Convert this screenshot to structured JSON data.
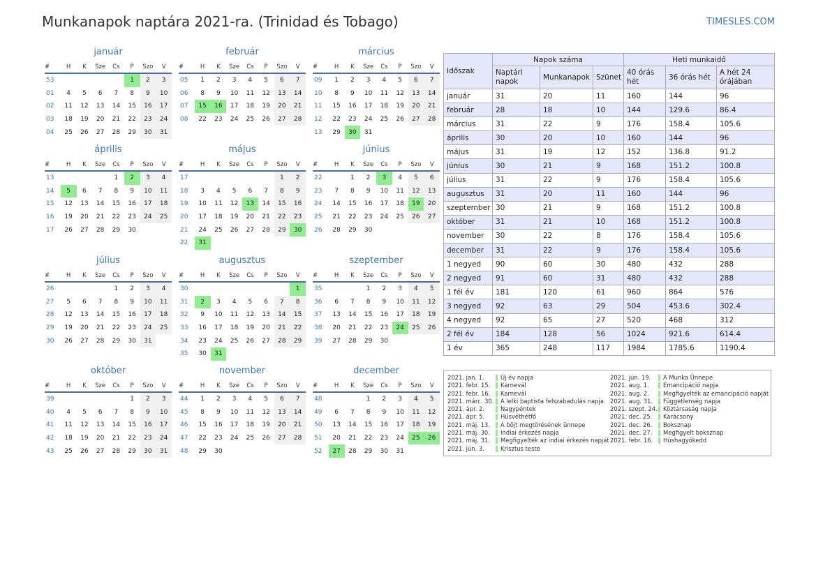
{
  "title": "Munkanapok naptára 2021-ra. (Trinidad és Tobago)",
  "site": "TIMESLES.COM",
  "colors": {
    "accent": "#3b78b8",
    "holiday": "#90ee90",
    "weekend": "#f0f0f0",
    "header_rule": "#4a6ba8",
    "table_alt": "#e4e8fa"
  },
  "weekday_headers": [
    "#",
    "H",
    "K",
    "Sze",
    "Cs",
    "P",
    "Szo",
    "V"
  ],
  "months": [
    {
      "name": "január",
      "rows": [
        {
          "wk": "53",
          "days": [
            "",
            "",
            "",
            "",
            "1",
            "2",
            "3"
          ]
        },
        {
          "wk": "01",
          "days": [
            "4",
            "5",
            "6",
            "7",
            "8",
            "9",
            "10"
          ]
        },
        {
          "wk": "02",
          "days": [
            "11",
            "12",
            "13",
            "14",
            "15",
            "16",
            "17"
          ]
        },
        {
          "wk": "03",
          "days": [
            "18",
            "19",
            "20",
            "21",
            "22",
            "23",
            "24"
          ]
        },
        {
          "wk": "04",
          "days": [
            "25",
            "26",
            "27",
            "28",
            "29",
            "30",
            "31"
          ]
        }
      ],
      "holidays": [
        "1"
      ]
    },
    {
      "name": "február",
      "rows": [
        {
          "wk": "05",
          "days": [
            "1",
            "2",
            "3",
            "4",
            "5",
            "6",
            "7"
          ]
        },
        {
          "wk": "06",
          "days": [
            "8",
            "9",
            "10",
            "11",
            "12",
            "13",
            "14"
          ]
        },
        {
          "wk": "07",
          "days": [
            "15",
            "16",
            "17",
            "18",
            "19",
            "20",
            "21"
          ]
        },
        {
          "wk": "08",
          "days": [
            "22",
            "23",
            "24",
            "25",
            "26",
            "27",
            "28"
          ]
        }
      ],
      "holidays": [
        "15",
        "16"
      ]
    },
    {
      "name": "március",
      "rows": [
        {
          "wk": "09",
          "days": [
            "1",
            "2",
            "3",
            "4",
            "5",
            "6",
            "7"
          ]
        },
        {
          "wk": "10",
          "days": [
            "8",
            "9",
            "10",
            "11",
            "12",
            "13",
            "14"
          ]
        },
        {
          "wk": "11",
          "days": [
            "15",
            "16",
            "17",
            "18",
            "19",
            "20",
            "21"
          ]
        },
        {
          "wk": "12",
          "days": [
            "22",
            "23",
            "24",
            "25",
            "26",
            "27",
            "28"
          ]
        },
        {
          "wk": "13",
          "days": [
            "29",
            "30",
            "31",
            "",
            "",
            "",
            ""
          ]
        }
      ],
      "holidays": [
        "30"
      ]
    },
    {
      "name": "április",
      "rows": [
        {
          "wk": "13",
          "days": [
            "",
            "",
            "",
            "1",
            "2",
            "3",
            "4"
          ]
        },
        {
          "wk": "14",
          "days": [
            "5",
            "6",
            "7",
            "8",
            "9",
            "10",
            "11"
          ]
        },
        {
          "wk": "15",
          "days": [
            "12",
            "13",
            "14",
            "15",
            "16",
            "17",
            "18"
          ]
        },
        {
          "wk": "16",
          "days": [
            "19",
            "20",
            "21",
            "22",
            "23",
            "24",
            "25"
          ]
        },
        {
          "wk": "17",
          "days": [
            "26",
            "27",
            "28",
            "29",
            "30",
            "",
            ""
          ]
        }
      ],
      "holidays": [
        "2",
        "5"
      ]
    },
    {
      "name": "május",
      "rows": [
        {
          "wk": "17",
          "days": [
            "",
            "",
            "",
            "",
            "",
            "1",
            "2"
          ]
        },
        {
          "wk": "18",
          "days": [
            "3",
            "4",
            "5",
            "6",
            "7",
            "8",
            "9"
          ]
        },
        {
          "wk": "19",
          "days": [
            "10",
            "11",
            "12",
            "13",
            "14",
            "15",
            "16"
          ]
        },
        {
          "wk": "20",
          "days": [
            "17",
            "18",
            "19",
            "20",
            "21",
            "22",
            "23"
          ]
        },
        {
          "wk": "21",
          "days": [
            "24",
            "25",
            "26",
            "27",
            "28",
            "29",
            "30"
          ]
        },
        {
          "wk": "22",
          "days": [
            "31",
            "",
            "",
            "",
            "",
            "",
            ""
          ]
        }
      ],
      "holidays": [
        "13",
        "30",
        "31"
      ]
    },
    {
      "name": "június",
      "rows": [
        {
          "wk": "22",
          "days": [
            "",
            "1",
            "2",
            "3",
            "4",
            "5",
            "6"
          ]
        },
        {
          "wk": "23",
          "days": [
            "7",
            "8",
            "9",
            "10",
            "11",
            "12",
            "13"
          ]
        },
        {
          "wk": "24",
          "days": [
            "14",
            "15",
            "16",
            "17",
            "18",
            "19",
            "20"
          ]
        },
        {
          "wk": "25",
          "days": [
            "21",
            "22",
            "23",
            "24",
            "25",
            "26",
            "27"
          ]
        },
        {
          "wk": "26",
          "days": [
            "28",
            "29",
            "30",
            "",
            "",
            "",
            ""
          ]
        }
      ],
      "holidays": [
        "3",
        "19"
      ]
    },
    {
      "name": "július",
      "rows": [
        {
          "wk": "26",
          "days": [
            "",
            "",
            "",
            "1",
            "2",
            "3",
            "4"
          ]
        },
        {
          "wk": "27",
          "days": [
            "5",
            "6",
            "7",
            "8",
            "9",
            "10",
            "11"
          ]
        },
        {
          "wk": "28",
          "days": [
            "12",
            "13",
            "14",
            "15",
            "16",
            "17",
            "18"
          ]
        },
        {
          "wk": "29",
          "days": [
            "19",
            "20",
            "21",
            "22",
            "23",
            "24",
            "25"
          ]
        },
        {
          "wk": "30",
          "days": [
            "26",
            "27",
            "28",
            "29",
            "30",
            "31",
            ""
          ]
        }
      ],
      "holidays": []
    },
    {
      "name": "augusztus",
      "rows": [
        {
          "wk": "30",
          "days": [
            "",
            "",
            "",
            "",
            "",
            "",
            "1"
          ]
        },
        {
          "wk": "31",
          "days": [
            "2",
            "3",
            "4",
            "5",
            "6",
            "7",
            "8"
          ]
        },
        {
          "wk": "32",
          "days": [
            "9",
            "10",
            "11",
            "12",
            "13",
            "14",
            "15"
          ]
        },
        {
          "wk": "33",
          "days": [
            "16",
            "17",
            "18",
            "19",
            "20",
            "21",
            "22"
          ]
        },
        {
          "wk": "34",
          "days": [
            "23",
            "24",
            "25",
            "26",
            "27",
            "28",
            "29"
          ]
        },
        {
          "wk": "35",
          "days": [
            "30",
            "31",
            "",
            "",
            "",
            "",
            ""
          ]
        }
      ],
      "holidays": [
        "1",
        "2",
        "31"
      ]
    },
    {
      "name": "szeptember",
      "rows": [
        {
          "wk": "35",
          "days": [
            "",
            "",
            "1",
            "2",
            "3",
            "4",
            "5"
          ]
        },
        {
          "wk": "36",
          "days": [
            "6",
            "7",
            "8",
            "9",
            "10",
            "11",
            "12"
          ]
        },
        {
          "wk": "37",
          "days": [
            "13",
            "14",
            "15",
            "16",
            "17",
            "18",
            "19"
          ]
        },
        {
          "wk": "38",
          "days": [
            "20",
            "21",
            "22",
            "23",
            "24",
            "25",
            "26"
          ]
        },
        {
          "wk": "39",
          "days": [
            "27",
            "28",
            "29",
            "30",
            "",
            "",
            ""
          ]
        }
      ],
      "holidays": [
        "24"
      ]
    },
    {
      "name": "október",
      "rows": [
        {
          "wk": "39",
          "days": [
            "",
            "",
            "",
            "",
            "1",
            "2",
            "3"
          ]
        },
        {
          "wk": "40",
          "days": [
            "4",
            "5",
            "6",
            "7",
            "8",
            "9",
            "10"
          ]
        },
        {
          "wk": "41",
          "days": [
            "11",
            "12",
            "13",
            "14",
            "15",
            "16",
            "17"
          ]
        },
        {
          "wk": "42",
          "days": [
            "18",
            "19",
            "20",
            "21",
            "22",
            "23",
            "24"
          ]
        },
        {
          "wk": "43",
          "days": [
            "25",
            "26",
            "27",
            "28",
            "29",
            "30",
            "31"
          ]
        }
      ],
      "holidays": []
    },
    {
      "name": "november",
      "rows": [
        {
          "wk": "44",
          "days": [
            "1",
            "2",
            "3",
            "4",
            "5",
            "6",
            "7"
          ]
        },
        {
          "wk": "45",
          "days": [
            "8",
            "9",
            "10",
            "11",
            "12",
            "13",
            "14"
          ]
        },
        {
          "wk": "46",
          "days": [
            "15",
            "16",
            "17",
            "18",
            "19",
            "20",
            "21"
          ]
        },
        {
          "wk": "47",
          "days": [
            "22",
            "23",
            "24",
            "25",
            "26",
            "27",
            "28"
          ]
        },
        {
          "wk": "48",
          "days": [
            "29",
            "30",
            "",
            "",
            "",
            "",
            ""
          ]
        }
      ],
      "holidays": []
    },
    {
      "name": "december",
      "rows": [
        {
          "wk": "48",
          "days": [
            "",
            "",
            "1",
            "2",
            "3",
            "4",
            "5"
          ]
        },
        {
          "wk": "49",
          "days": [
            "6",
            "7",
            "8",
            "9",
            "10",
            "11",
            "12"
          ]
        },
        {
          "wk": "50",
          "days": [
            "13",
            "14",
            "15",
            "16",
            "17",
            "18",
            "19"
          ]
        },
        {
          "wk": "51",
          "days": [
            "20",
            "21",
            "22",
            "23",
            "24",
            "25",
            "26"
          ]
        },
        {
          "wk": "52",
          "days": [
            "27",
            "28",
            "29",
            "30",
            "31",
            "",
            ""
          ]
        }
      ],
      "holidays": [
        "25",
        "26",
        "27"
      ]
    }
  ],
  "stats": {
    "h_period": "Időszak",
    "h_days_group": "Napok száma",
    "h_hours_group": "Heti munkaidő",
    "h_days_sub": [
      "Naptári napok",
      "Munkanapok",
      "Szünet"
    ],
    "h_hours_sub": [
      "40 órás hét",
      "36 órás hét",
      "A hét 24 órájában"
    ],
    "rows": [
      [
        "január",
        "31",
        "20",
        "11",
        "160",
        "144",
        "96"
      ],
      [
        "február",
        "28",
        "18",
        "10",
        "144",
        "129.6",
        "86.4"
      ],
      [
        "március",
        "31",
        "22",
        "9",
        "176",
        "158.4",
        "105.6"
      ],
      [
        "április",
        "30",
        "20",
        "10",
        "160",
        "144",
        "96"
      ],
      [
        "május",
        "31",
        "19",
        "12",
        "152",
        "136.8",
        "91.2"
      ],
      [
        "június",
        "30",
        "21",
        "9",
        "168",
        "151.2",
        "100.8"
      ],
      [
        "július",
        "31",
        "22",
        "9",
        "176",
        "158.4",
        "105.6"
      ],
      [
        "augusztus",
        "31",
        "20",
        "11",
        "160",
        "144",
        "96"
      ],
      [
        "szeptember",
        "30",
        "21",
        "9",
        "168",
        "151.2",
        "100.8"
      ],
      [
        "október",
        "31",
        "21",
        "10",
        "168",
        "151.2",
        "100.8"
      ],
      [
        "november",
        "30",
        "22",
        "8",
        "176",
        "158.4",
        "105.6"
      ],
      [
        "december",
        "31",
        "22",
        "9",
        "176",
        "158.4",
        "105.6"
      ],
      [
        "1 negyed",
        "90",
        "60",
        "30",
        "480",
        "432",
        "288"
      ],
      [
        "2 negyed",
        "91",
        "60",
        "31",
        "480",
        "432",
        "288"
      ],
      [
        "1 fél év",
        "181",
        "120",
        "61",
        "960",
        "864",
        "576"
      ],
      [
        "3 negyed",
        "92",
        "63",
        "29",
        "504",
        "453.6",
        "302.4"
      ],
      [
        "4 negyed",
        "92",
        "65",
        "27",
        "520",
        "468",
        "312"
      ],
      [
        "2 fél év",
        "184",
        "128",
        "56",
        "1024",
        "921.6",
        "614.4"
      ],
      [
        "1 év",
        "365",
        "248",
        "117",
        "1984",
        "1785.6",
        "1190.4"
      ]
    ]
  },
  "holiday_list": {
    "left": [
      {
        "date": "2021. jan. 1.",
        "name": "Új év napja"
      },
      {
        "date": "2021. febr. 15.",
        "name": "Karnevál"
      },
      {
        "date": "2021. febr. 16.",
        "name": "Karnevál"
      },
      {
        "date": "2021. márc. 30.",
        "name": "A lelki baptista felszabadulás napja"
      },
      {
        "date": "2021. ápr. 2.",
        "name": "Nagypéntek"
      },
      {
        "date": "2021. ápr. 5.",
        "name": "Húsvéthétfő"
      },
      {
        "date": "2021. máj. 13.",
        "name": "A böjt megtörésének ünnepe"
      },
      {
        "date": "2021. máj. 30.",
        "name": "Indiai érkezés napja"
      },
      {
        "date": "2021. máj. 31.",
        "name": "Megfigyelték az indiai érkezés napját"
      },
      {
        "date": "2021. jún. 3.",
        "name": "Krisztus teste"
      }
    ],
    "right": [
      {
        "date": "2021. jún. 19.",
        "name": "A Munka Ünnepe"
      },
      {
        "date": "2021. aug. 1.",
        "name": "Emancipáció napja"
      },
      {
        "date": "2021. aug. 2.",
        "name": "Megfigyelték az emancipáció napját"
      },
      {
        "date": "2021. aug. 31.",
        "name": "Függetlenség napja"
      },
      {
        "date": "2021. szept. 24.",
        "name": "Köztársaság napja"
      },
      {
        "date": "2021. dec. 25.",
        "name": "Karácsony"
      },
      {
        "date": "2021. dec. 26.",
        "name": "Boksznap"
      },
      {
        "date": "2021. dec. 27.",
        "name": "Megfigyelt boksznap"
      },
      {
        "date": "2021. febr. 16.",
        "name": "Húshagyókedd"
      }
    ]
  }
}
